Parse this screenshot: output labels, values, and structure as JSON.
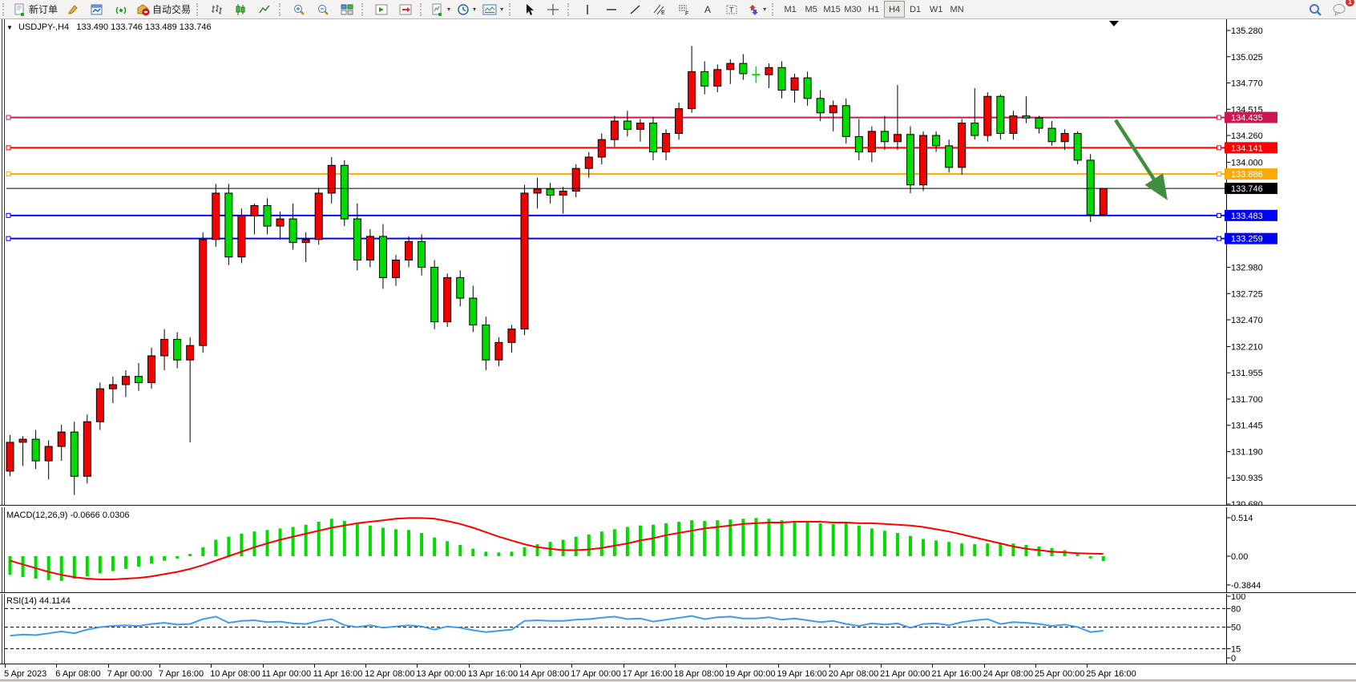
{
  "toolbar": {
    "new_order_label": "新订单",
    "auto_trading_label": "自动交易",
    "channel_letter": "E",
    "fibo_letter": "F",
    "text_letter": "A",
    "label_letter": "T",
    "timeframes": [
      "M1",
      "M5",
      "M15",
      "M30",
      "H1",
      "H4",
      "D1",
      "W1",
      "MN"
    ],
    "active_timeframe": "H4",
    "chat_badge": "1"
  },
  "chart": {
    "title_symbol": "USDJPY-,H4",
    "title_ohlc": "133.490 133.746 133.489 133.746"
  },
  "chart_data": {
    "type": "candlestick",
    "symbol": "USDJPY-",
    "timeframe": "H4",
    "current_bar": {
      "open": "133.490",
      "high": "133.746",
      "low": "133.489",
      "close": "133.746"
    },
    "ylim": [
      130.68,
      135.28
    ],
    "up_color": "#f40000",
    "down_color": "#00db00",
    "price_axis_ticks": [
      "135.280",
      "135.025",
      "134.770",
      "134.515",
      "134.260",
      "134.000",
      "133.745",
      "133.490",
      "133.235",
      "132.980",
      "132.725",
      "132.470",
      "132.210",
      "131.955",
      "131.700",
      "131.445",
      "131.190",
      "130.935",
      "130.680"
    ],
    "horizontal_lines": [
      {
        "price": 134.435,
        "label": "134.435",
        "color": "#ce1750"
      },
      {
        "price": 134.141,
        "label": "134.141",
        "color": "#fe0000"
      },
      {
        "price": 133.886,
        "label": "133.886",
        "color": "#ffa800"
      },
      {
        "price": 133.483,
        "label": "133.483",
        "color": "#0000ff"
      },
      {
        "price": 133.259,
        "label": "133.259",
        "color": "#0000ff"
      }
    ],
    "bid_line": {
      "price": 133.746,
      "label": "133.746",
      "color": "#000000"
    },
    "x_labels": [
      "5 Apr 2023",
      "6 Apr 08:00",
      "7 Apr 00:00",
      "7 Apr 16:00",
      "10 Apr 08:00",
      "11 Apr 00:00",
      "11 Apr 16:00",
      "12 Apr 08:00",
      "13 Apr 00:00",
      "13 Apr 16:00",
      "14 Apr 08:00",
      "17 Apr 00:00",
      "17 Apr 16:00",
      "18 Apr 08:00",
      "19 Apr 00:00",
      "19 Apr 16:00",
      "20 Apr 08:00",
      "21 Apr 00:00",
      "21 Apr 16:00",
      "24 Apr 08:00",
      "25 Apr 00:00",
      "25 Apr 16:00"
    ],
    "candles": [
      [
        131.0,
        131.35,
        130.95,
        131.28
      ],
      [
        131.28,
        131.34,
        131.05,
        131.31
      ],
      [
        131.31,
        131.4,
        131.02,
        131.1
      ],
      [
        131.1,
        131.3,
        130.92,
        131.24
      ],
      [
        131.24,
        131.45,
        131.1,
        131.38
      ],
      [
        131.38,
        131.48,
        130.77,
        130.95
      ],
      [
        130.95,
        131.55,
        130.88,
        131.48
      ],
      [
        131.48,
        131.86,
        131.4,
        131.8
      ],
      [
        131.8,
        131.92,
        131.66,
        131.84
      ],
      [
        131.84,
        131.98,
        131.72,
        131.92
      ],
      [
        131.92,
        132.05,
        131.78,
        131.86
      ],
      [
        131.86,
        132.2,
        131.8,
        132.12
      ],
      [
        132.12,
        132.38,
        131.98,
        132.28
      ],
      [
        132.28,
        132.35,
        132.0,
        132.08
      ],
      [
        132.08,
        132.3,
        131.28,
        132.22
      ],
      [
        132.22,
        133.32,
        132.15,
        133.25
      ],
      [
        133.25,
        133.79,
        133.18,
        133.7
      ],
      [
        133.7,
        133.79,
        133.0,
        133.08
      ],
      [
        133.08,
        133.55,
        133.02,
        133.48
      ],
      [
        133.48,
        133.6,
        133.3,
        133.58
      ],
      [
        133.58,
        133.65,
        133.3,
        133.38
      ],
      [
        133.38,
        133.52,
        133.25,
        133.45
      ],
      [
        133.45,
        133.6,
        133.15,
        133.22
      ],
      [
        133.22,
        133.32,
        133.03,
        133.25
      ],
      [
        133.25,
        133.75,
        133.2,
        133.7
      ],
      [
        133.7,
        134.05,
        133.6,
        133.97
      ],
      [
        133.97,
        134.02,
        133.38,
        133.45
      ],
      [
        133.45,
        133.6,
        132.95,
        133.05
      ],
      [
        133.05,
        133.35,
        132.98,
        133.28
      ],
      [
        133.28,
        133.4,
        132.77,
        132.88
      ],
      [
        132.88,
        133.1,
        132.8,
        133.05
      ],
      [
        133.05,
        133.28,
        132.98,
        133.23
      ],
      [
        133.23,
        133.3,
        132.9,
        132.98
      ],
      [
        132.98,
        133.05,
        132.38,
        132.45
      ],
      [
        132.45,
        132.92,
        132.4,
        132.88
      ],
      [
        132.88,
        132.95,
        132.6,
        132.68
      ],
      [
        132.68,
        132.8,
        132.35,
        132.42
      ],
      [
        132.42,
        132.5,
        131.98,
        132.08
      ],
      [
        132.08,
        132.3,
        132.02,
        132.25
      ],
      [
        132.25,
        132.42,
        132.15,
        132.38
      ],
      [
        132.38,
        133.78,
        132.32,
        133.7
      ],
      [
        133.7,
        133.85,
        133.55,
        133.74
      ],
      [
        133.74,
        133.8,
        133.6,
        133.68
      ],
      [
        133.68,
        133.76,
        133.5,
        133.72
      ],
      [
        133.72,
        133.98,
        133.66,
        133.94
      ],
      [
        133.94,
        134.1,
        133.85,
        134.05
      ],
      [
        134.05,
        134.28,
        133.98,
        134.22
      ],
      [
        134.22,
        134.45,
        134.15,
        134.4
      ],
      [
        134.4,
        134.5,
        134.25,
        134.32
      ],
      [
        134.32,
        134.42,
        134.2,
        134.38
      ],
      [
        134.38,
        134.44,
        134.02,
        134.1
      ],
      [
        134.1,
        134.32,
        134.02,
        134.28
      ],
      [
        134.28,
        134.58,
        134.22,
        134.52
      ],
      [
        134.52,
        135.13,
        134.48,
        134.88
      ],
      [
        134.88,
        134.98,
        134.66,
        134.74
      ],
      [
        134.74,
        134.95,
        134.68,
        134.9
      ],
      [
        134.9,
        135.0,
        134.76,
        134.96
      ],
      [
        134.96,
        135.05,
        134.8,
        134.86
      ],
      [
        134.85,
        134.93,
        134.77,
        134.85
      ],
      [
        134.85,
        134.96,
        134.72,
        134.92
      ],
      [
        134.92,
        134.98,
        134.62,
        134.7
      ],
      [
        134.7,
        134.86,
        134.58,
        134.82
      ],
      [
        134.82,
        134.88,
        134.55,
        134.62
      ],
      [
        134.62,
        134.7,
        134.4,
        134.48
      ],
      [
        134.48,
        134.6,
        134.3,
        134.55
      ],
      [
        134.55,
        134.62,
        134.18,
        134.25
      ],
      [
        134.25,
        134.42,
        134.02,
        134.1
      ],
      [
        134.1,
        134.35,
        134.0,
        134.3
      ],
      [
        134.3,
        134.45,
        134.12,
        134.2
      ],
      [
        134.2,
        134.75,
        134.12,
        134.27
      ],
      [
        134.27,
        134.35,
        133.7,
        133.78
      ],
      [
        133.78,
        134.3,
        133.72,
        134.26
      ],
      [
        134.26,
        134.3,
        134.1,
        134.16
      ],
      [
        134.16,
        134.22,
        133.9,
        133.95
      ],
      [
        133.95,
        134.42,
        133.88,
        134.38
      ],
      [
        134.38,
        134.72,
        134.22,
        134.26
      ],
      [
        134.26,
        134.68,
        134.2,
        134.64
      ],
      [
        134.64,
        134.66,
        134.22,
        134.28
      ],
      [
        134.28,
        134.5,
        134.22,
        134.45
      ],
      [
        134.45,
        134.64,
        134.38,
        134.43
      ],
      [
        134.43,
        134.45,
        134.28,
        134.33
      ],
      [
        134.33,
        134.4,
        134.16,
        134.2
      ],
      [
        134.2,
        134.32,
        134.12,
        134.28
      ],
      [
        134.28,
        134.3,
        133.98,
        134.02
      ],
      [
        134.02,
        134.08,
        133.42,
        133.49
      ],
      [
        133.49,
        133.746,
        133.489,
        133.746
      ]
    ],
    "indicators": {
      "macd": {
        "label": "MACD(12,26,9) -0.0666 0.0306",
        "scale_ticks": [
          "0.514",
          "0.00",
          "-0.3844"
        ],
        "ylim": [
          -0.3844,
          0.514
        ],
        "hist_color": "#00db00",
        "signal_color": "#fe0000",
        "histogram": [
          -0.25,
          -0.28,
          -0.3,
          -0.32,
          -0.33,
          -0.3,
          -0.27,
          -0.23,
          -0.2,
          -0.17,
          -0.14,
          -0.1,
          -0.06,
          -0.03,
          0.03,
          0.12,
          0.22,
          0.26,
          0.3,
          0.33,
          0.35,
          0.37,
          0.39,
          0.42,
          0.46,
          0.5,
          0.47,
          0.43,
          0.41,
          0.38,
          0.36,
          0.35,
          0.31,
          0.25,
          0.2,
          0.15,
          0.1,
          0.06,
          0.05,
          0.06,
          0.12,
          0.16,
          0.19,
          0.22,
          0.26,
          0.29,
          0.33,
          0.36,
          0.39,
          0.41,
          0.42,
          0.44,
          0.46,
          0.48,
          0.47,
          0.48,
          0.49,
          0.5,
          0.51,
          0.5,
          0.48,
          0.47,
          0.45,
          0.44,
          0.43,
          0.44,
          0.41,
          0.37,
          0.34,
          0.31,
          0.27,
          0.23,
          0.21,
          0.19,
          0.17,
          0.16,
          0.17,
          0.18,
          0.17,
          0.15,
          0.13,
          0.11,
          0.08,
          0.04,
          -0.03,
          -0.0666
        ],
        "signal": [
          -0.06,
          -0.11,
          -0.16,
          -0.21,
          -0.25,
          -0.28,
          -0.3,
          -0.31,
          -0.31,
          -0.3,
          -0.29,
          -0.27,
          -0.24,
          -0.21,
          -0.17,
          -0.12,
          -0.06,
          0.0,
          0.06,
          0.12,
          0.17,
          0.22,
          0.26,
          0.3,
          0.34,
          0.38,
          0.41,
          0.44,
          0.46,
          0.48,
          0.5,
          0.51,
          0.51,
          0.5,
          0.47,
          0.43,
          0.38,
          0.32,
          0.26,
          0.21,
          0.16,
          0.12,
          0.1,
          0.08,
          0.08,
          0.09,
          0.11,
          0.14,
          0.17,
          0.21,
          0.24,
          0.28,
          0.31,
          0.34,
          0.37,
          0.39,
          0.41,
          0.43,
          0.44,
          0.45,
          0.45,
          0.46,
          0.46,
          0.46,
          0.45,
          0.45,
          0.44,
          0.44,
          0.43,
          0.42,
          0.41,
          0.39,
          0.36,
          0.33,
          0.29,
          0.25,
          0.21,
          0.17,
          0.13,
          0.1,
          0.08,
          0.06,
          0.05,
          0.04,
          0.035,
          0.0306
        ]
      },
      "rsi": {
        "label": "RSI(14) 44.1144",
        "value": "44.1144",
        "scale_ticks": [
          "100",
          "80",
          "50",
          "15",
          "0"
        ],
        "levels": [
          80,
          50,
          15
        ],
        "ylim": [
          0,
          100
        ],
        "color": "#3e9bef",
        "values": [
          36,
          38,
          37,
          40,
          43,
          40,
          46,
          50,
          52,
          53,
          52,
          55,
          57,
          54,
          55,
          63,
          67,
          57,
          60,
          61,
          58,
          59,
          56,
          55,
          60,
          63,
          53,
          50,
          53,
          49,
          51,
          53,
          51,
          46,
          51,
          49,
          45,
          42,
          44,
          46,
          60,
          61,
          60,
          60,
          62,
          63,
          65,
          67,
          63,
          64,
          59,
          62,
          65,
          68,
          63,
          66,
          67,
          64,
          64,
          66,
          62,
          64,
          61,
          58,
          60,
          55,
          52,
          56,
          54,
          56,
          49,
          55,
          56,
          53,
          58,
          61,
          63,
          55,
          58,
          57,
          55,
          52,
          54,
          50,
          42,
          44.11
        ]
      }
    },
    "annotations": {
      "down_arrow": {
        "color": "#3f8f3f",
        "from": {
          "x": 1392,
          "price": 134.41
        },
        "to": {
          "x": 1452,
          "price": 133.69
        }
      },
      "end_marker_x": 1390
    }
  }
}
